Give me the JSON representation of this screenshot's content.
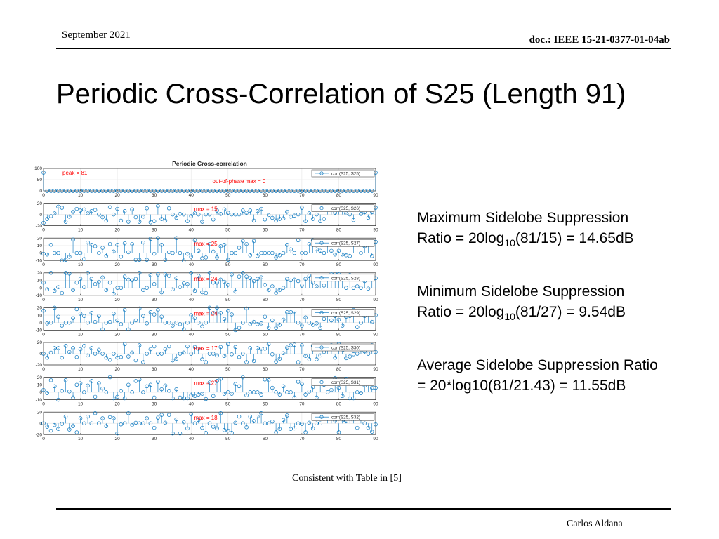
{
  "header": {
    "date": "September 2021",
    "doc": "doc.: IEEE 15-21-0377-01-04ab"
  },
  "title": "Periodic Cross-Correlation of S25 (Length 91)",
  "text_blocks": {
    "max_line1": "Maximum Sidelobe Suppression",
    "max_line2_pre": "Ratio = 20log",
    "max_sub": "10",
    "max_line2_post": "(81/15) = 14.65dB",
    "min_line1": "Minimum Sidelobe Suppression",
    "min_line2_pre": "Ratio = 20log",
    "min_sub": "10",
    "min_line2_post": "(81/27) = 9.54dB",
    "avg_line1": "Average Sidelobe Suppression Ratio",
    "avg_line2": "= 20*log10(81/21.43) = 11.55dB"
  },
  "footnote": "Consistent with Table in [5]",
  "author": "Carlos Aldana",
  "colors": {
    "stem": "#0072bd",
    "annotation": "#ff0000",
    "axis": "#262626",
    "grid": "#e6e6e6"
  },
  "chart_data": {
    "type": "stem",
    "title": "Periodic Cross-correlation",
    "x_range": [
      0,
      90
    ],
    "x_ticks": [
      0,
      10,
      20,
      30,
      40,
      50,
      60,
      70,
      80,
      90
    ],
    "n_points": 91,
    "panels": [
      {
        "legend": "corr(S25, S25)",
        "annotation": "out-of-phase max = 0",
        "annotation2": "peak = 81",
        "ylim": [
          0,
          100
        ],
        "yticks": [
          0,
          50,
          100
        ],
        "peak": 81,
        "max": 0,
        "seed": 1
      },
      {
        "legend": "corr(S25, S26)",
        "annotation": "max = 15",
        "ylim": [
          -20,
          20
        ],
        "yticks": [
          -20,
          0,
          20
        ],
        "max": 15,
        "seed": 2
      },
      {
        "legend": "corr(S25, S27)",
        "annotation": "max = 25",
        "ylim": [
          -10,
          20
        ],
        "yticks": [
          -10,
          0,
          10,
          20
        ],
        "max": 25,
        "seed": 3
      },
      {
        "legend": "corr(S25, S28)",
        "annotation": "max = 24",
        "ylim": [
          -10,
          20
        ],
        "yticks": [
          -10,
          0,
          10,
          20
        ],
        "max": 24,
        "seed": 4
      },
      {
        "legend": "corr(S25, S29)",
        "annotation": "max = 24",
        "ylim": [
          -10,
          20
        ],
        "yticks": [
          -10,
          0,
          10,
          20
        ],
        "max": 24,
        "seed": 5
      },
      {
        "legend": "corr(S25, S30)",
        "annotation": "max = 17",
        "ylim": [
          -20,
          20
        ],
        "yticks": [
          -20,
          0,
          20
        ],
        "max": 17,
        "seed": 6
      },
      {
        "legend": "corr(S25, S31)",
        "annotation": "max = 27",
        "ylim": [
          -10,
          20
        ],
        "yticks": [
          -10,
          0,
          10,
          20
        ],
        "max": 27,
        "seed": 7
      },
      {
        "legend": "corr(S25, S32)",
        "annotation": "max = 18",
        "ylim": [
          -20,
          20
        ],
        "yticks": [
          -20,
          0,
          20
        ],
        "max": 18,
        "seed": 8
      }
    ]
  }
}
